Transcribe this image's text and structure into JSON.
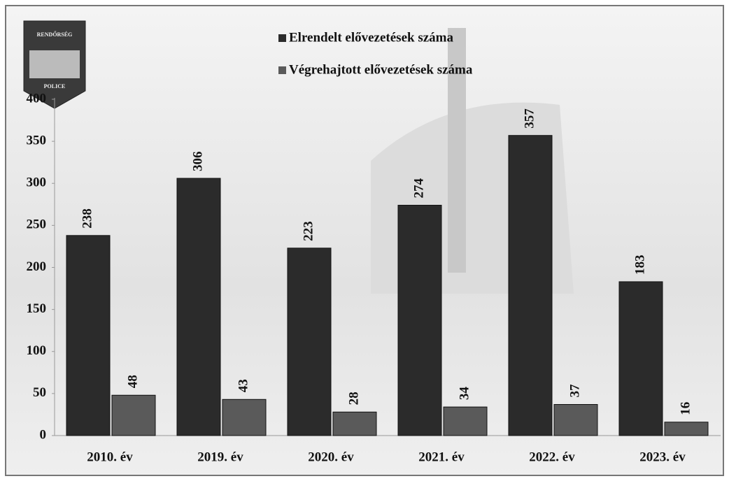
{
  "logo": {
    "top": "RENDŐRSÉG",
    "bottom": "POLICE"
  },
  "chart_data": {
    "type": "bar",
    "categories": [
      "2010. év",
      "2019. év",
      "2020. év",
      "2021. év",
      "2022. év",
      "2023. év"
    ],
    "series": [
      {
        "name": "Elrendelt elővezetések száma",
        "color": "#2b2b2b",
        "values": [
          238,
          306,
          223,
          274,
          357,
          183
        ]
      },
      {
        "name": "Végrehajtott elővezetések száma",
        "color": "#5a5a5a",
        "values": [
          48,
          43,
          28,
          34,
          37,
          16
        ]
      }
    ],
    "ylim": [
      0,
      400
    ],
    "yticks": [
      0,
      50,
      100,
      150,
      200,
      250,
      300,
      350,
      400
    ],
    "legend": "top"
  }
}
